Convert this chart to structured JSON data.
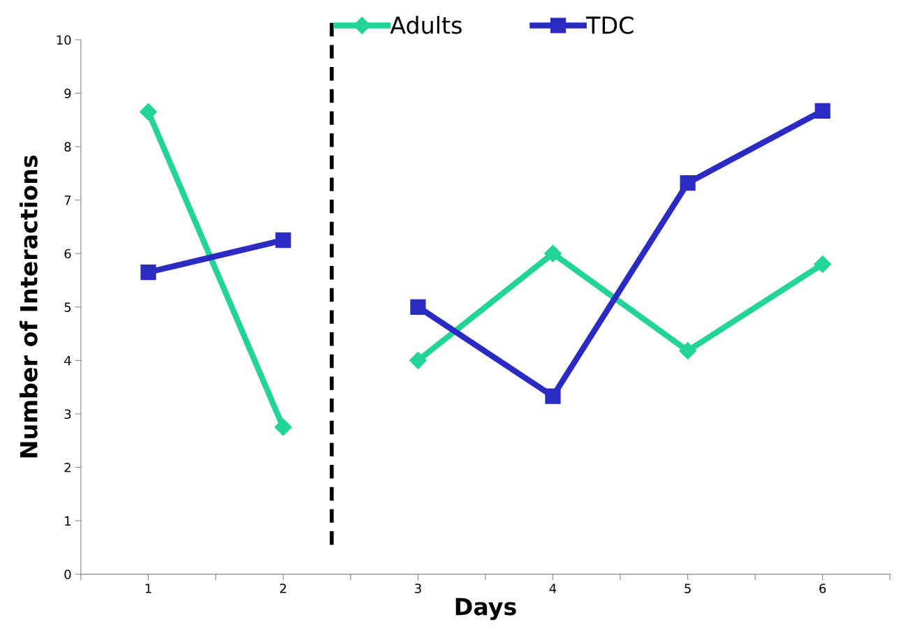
{
  "chart_data": {
    "type": "line",
    "xlabel": "Days",
    "ylabel": "Number of Interactions",
    "x": [
      1,
      2,
      3,
      4,
      5,
      6
    ],
    "xlim": [
      0.5,
      6.5
    ],
    "xticks": [
      {
        "value": 0.5,
        "label": null
      },
      1,
      {
        "value": 1.5,
        "label": null
      },
      2,
      {
        "value": 2.5,
        "label": null
      },
      3,
      {
        "value": 3.5,
        "label": null
      },
      4,
      {
        "value": 4.5,
        "label": null
      },
      5,
      {
        "value": 5.5,
        "label": null
      },
      6,
      {
        "value": 6.5,
        "label": null
      }
    ],
    "ylim": [
      0,
      10
    ],
    "yticks": [
      0,
      1,
      2,
      3,
      4,
      5,
      6,
      7,
      8,
      9,
      10
    ],
    "series": [
      {
        "name": "Adults",
        "color": "#22d496",
        "marker": "diamond",
        "values": [
          8.65,
          2.75,
          4.0,
          6.0,
          4.18,
          5.8
        ]
      },
      {
        "name": "TDC",
        "color": "#2b2bc4",
        "marker": "square",
        "values": [
          5.65,
          6.25,
          5.0,
          3.33,
          7.32,
          8.67
        ]
      }
    ],
    "ref_lines": [
      {
        "axis": "x",
        "value": 2.36,
        "color": "#000000",
        "line_style": "dashed"
      }
    ],
    "grid": false,
    "legend": "top"
  }
}
